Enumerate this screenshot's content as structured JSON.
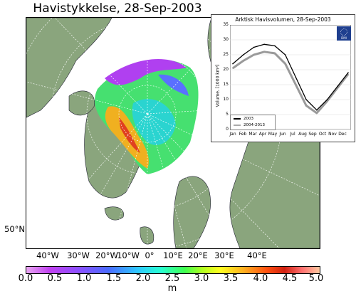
{
  "title": "Havistykkelse, 28-Sep-2003",
  "map": {
    "lat_label": "50°N",
    "lon_labels": [
      "40°W",
      "30°W",
      "20°W",
      "10°W",
      "0°",
      "10°E",
      "20°E",
      "30°E",
      "40°E"
    ]
  },
  "colorbar": {
    "ticks": [
      "0.0",
      "0.5",
      "1.0",
      "1.5",
      "2.0",
      "2.5",
      "3.0",
      "3.5",
      "4.0",
      "4.5",
      "5.0"
    ],
    "unit": "m"
  },
  "inset": {
    "title": "Arktisk Havisvolumen, 28-Sep-2003",
    "ylabel": "Volume, [1000 km³]",
    "yticks": [
      "35",
      "30",
      "25",
      "20",
      "15",
      "10",
      "5",
      "0"
    ],
    "months": [
      "Jan",
      "Feb",
      "Mar",
      "Apr",
      "May",
      "Jun",
      "Jul",
      "Aug",
      "Sep",
      "Oct",
      "Nov",
      "Dec"
    ],
    "legend": [
      "2003",
      "2004-2013"
    ],
    "logo_text": "DMI"
  },
  "chart_data": {
    "type": "line",
    "title": "Arktisk Havisvolumen, 28-Sep-2003",
    "xlabel": "",
    "ylabel": "Volume, [1000 km³]",
    "ylim": [
      0,
      35
    ],
    "categories": [
      "Jan",
      "Feb",
      "Mar",
      "Apr",
      "May",
      "Jun",
      "Jul",
      "Aug",
      "Sep",
      "Oct",
      "Nov",
      "Dec"
    ],
    "series": [
      {
        "name": "2003",
        "values": [
          22,
          25,
          27.5,
          28.5,
          28,
          25,
          17.5,
          10,
          6.5,
          10,
          14.5,
          19
        ]
      },
      {
        "name": "2004-2013",
        "values": [
          20.5,
          23,
          25,
          26,
          25.5,
          22,
          15,
          8,
          5.5,
          9.5,
          14,
          18.5
        ]
      }
    ]
  }
}
